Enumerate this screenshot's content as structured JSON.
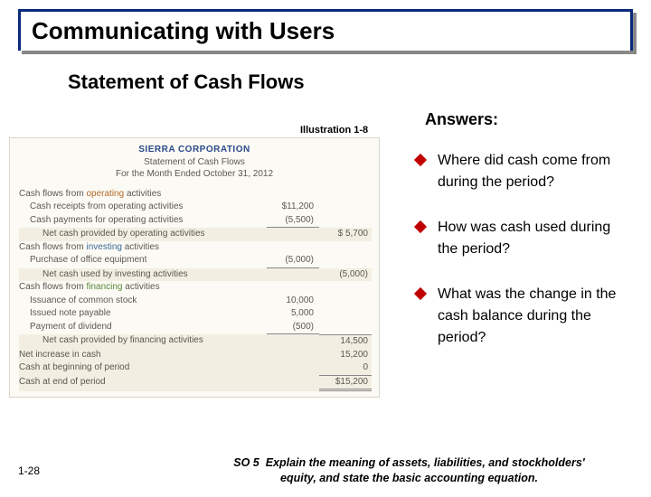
{
  "colors": {
    "header_border": "#0a2a7a",
    "header_text": "#000000",
    "diamond": "#c00000",
    "op": "#b36a2a",
    "inv": "#3a6a9a",
    "fin": "#5a8a3a",
    "corp": "#2a4a8a"
  },
  "header": {
    "title": "Communicating with Users"
  },
  "subtitle": "Statement of Cash Flows",
  "illustration_label": "Illustration 1-8",
  "answers_label": "Answers:",
  "statement": {
    "corp": "SIERRA CORPORATION",
    "name": "Statement of Cash Flows",
    "period": "For the Month Ended October 31, 2012",
    "sections": {
      "operating": {
        "heading_pre": "Cash flows from ",
        "heading_word": "operating",
        "heading_post": " activities",
        "lines": [
          {
            "label": "Cash receipts from operating activities",
            "amt1": "$11,200"
          },
          {
            "label": "Cash payments for operating activities",
            "amt1": "(5,500)",
            "ul": true
          }
        ],
        "subtotal": {
          "label": "Net cash provided by operating activities",
          "amt2": "$ 5,700"
        }
      },
      "investing": {
        "heading_pre": "Cash flows from ",
        "heading_word": "investing",
        "heading_post": " activities",
        "lines": [
          {
            "label": "Purchase of office equipment",
            "amt1": "(5,000)",
            "ul": true
          }
        ],
        "subtotal": {
          "label": "Net cash used by investing activities",
          "amt2": "(5,000)"
        }
      },
      "financing": {
        "heading_pre": "Cash flows from ",
        "heading_word": "financing",
        "heading_post": " activities",
        "lines": [
          {
            "label": "Issuance of common stock",
            "amt1": "10,000"
          },
          {
            "label": "Issued note payable",
            "amt1": "5,000"
          },
          {
            "label": "Payment of dividend",
            "amt1": "(500)",
            "ul": true
          }
        ],
        "subtotal": {
          "label": "Net cash provided by financing activities",
          "amt2": "14,500",
          "ultop": true
        }
      }
    },
    "footer": [
      {
        "label": "Net increase in cash",
        "amt2": "15,200"
      },
      {
        "label": "Cash at beginning of period",
        "amt2": "0",
        "ulbot": true
      },
      {
        "label": "Cash at end of period",
        "amt2": "$15,200",
        "dbl": true
      }
    ]
  },
  "answers": [
    "Where did cash come from during the period?",
    "How was cash used during the period?",
    "What was the change in the cash balance during the period?"
  ],
  "page_num": "1-28",
  "so": {
    "code": "SO 5",
    "text1": "Explain the meaning of assets, liabilities, and stockholders'",
    "text2": "equity, and state the basic accounting equation."
  }
}
